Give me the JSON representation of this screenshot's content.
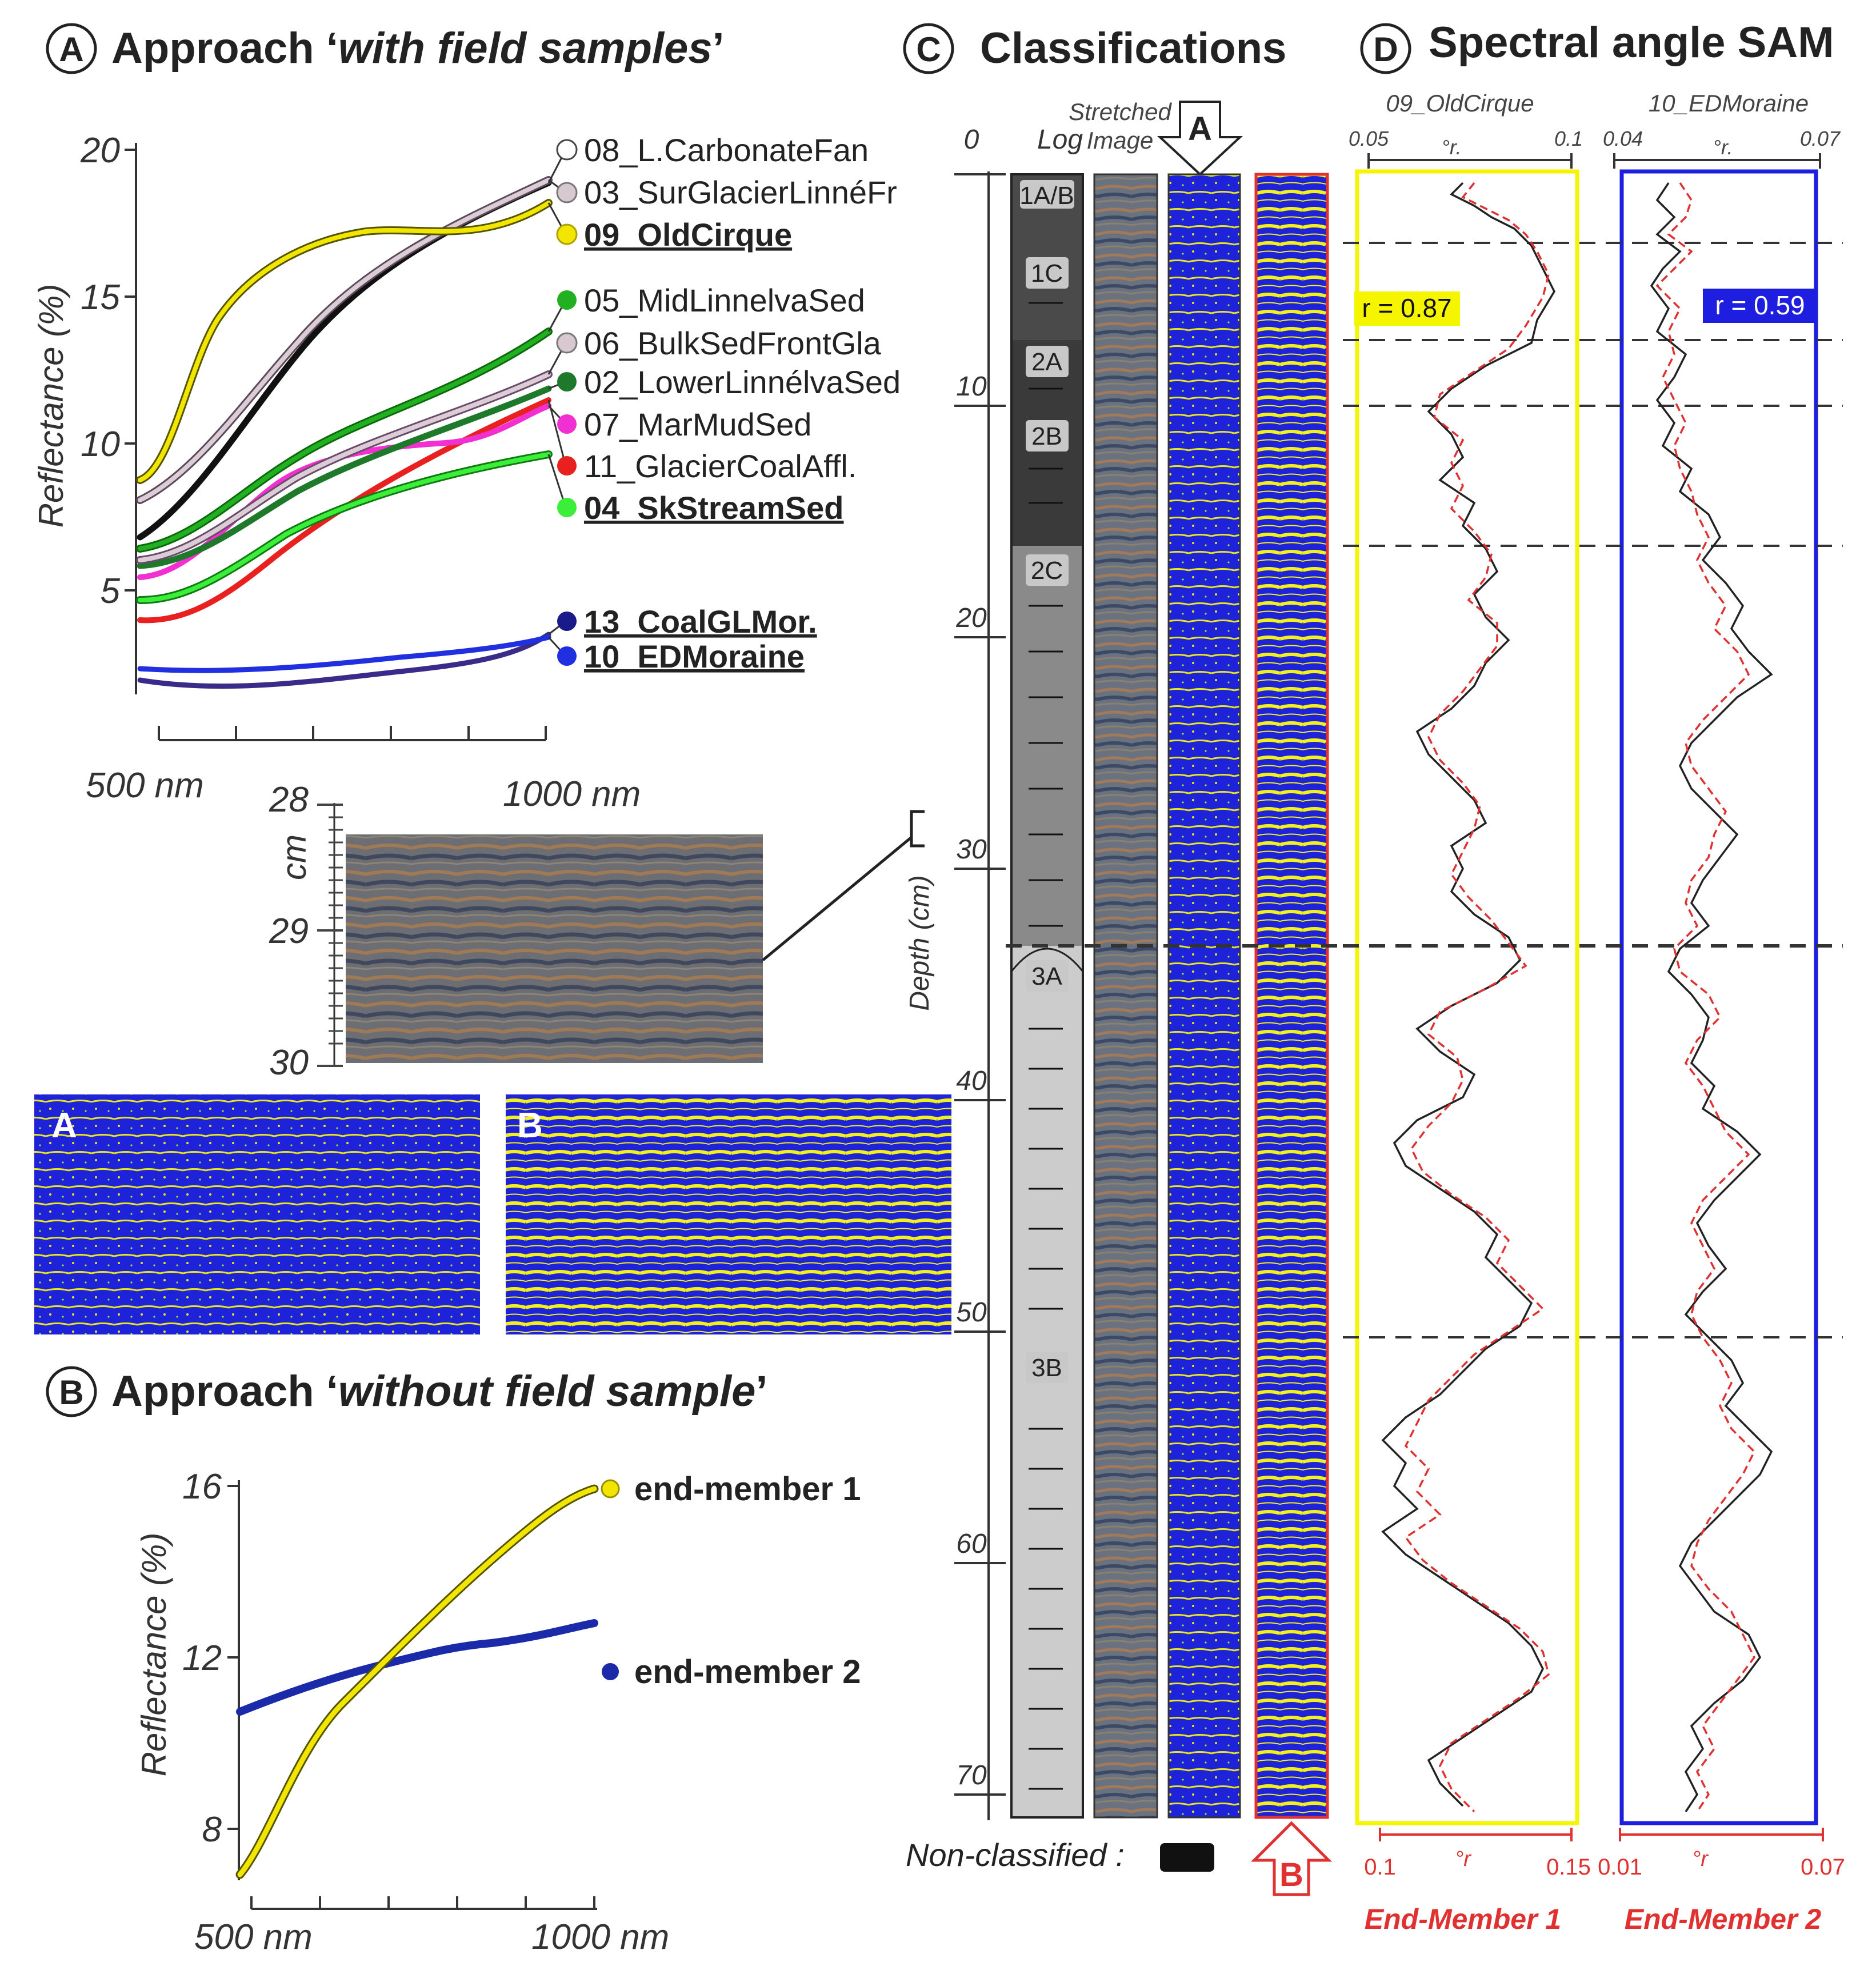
{
  "panelA": {
    "label": "A",
    "title_prefix": "Approach ‘",
    "title_em": "with field samples",
    "title_suffix": "’",
    "chart": {
      "ylabel": "Reflectance (%)",
      "y_ticks": [
        "20",
        "15",
        "10",
        "5"
      ],
      "x_labels": [
        "500 nm",
        "1000 nm"
      ]
    },
    "legend": [
      {
        "id": "08",
        "label": "08_L.CarbonateFan",
        "color": "#ffffff",
        "bold": false
      },
      {
        "id": "03",
        "label": "03_SurGlacierLinnéFr",
        "color": "#d8c8d0",
        "bold": false
      },
      {
        "id": "09",
        "label": "09_OldCirque",
        "color": "#f2e600",
        "bold": true
      },
      {
        "id": "05",
        "label": "05_MidLinnelvaSed",
        "color": "#22b022",
        "bold": false
      },
      {
        "id": "06",
        "label": "06_BulkSedFrontGla",
        "color": "#d8c8d0",
        "bold": false
      },
      {
        "id": "02",
        "label": "02_LowerLinnélvaSed",
        "color": "#1e7a2a",
        "bold": false
      },
      {
        "id": "07",
        "label": "07_MarMudSed",
        "color": "#f030d0",
        "bold": false
      },
      {
        "id": "11",
        "label": "11_GlacierCoalAffl.",
        "color": "#e82020",
        "bold": false
      },
      {
        "id": "04",
        "label": "04_SkStreamSed",
        "color": "#3aee3a",
        "bold": true
      },
      {
        "id": "13",
        "label": "13_CoalGLMor.",
        "color": "#1a1a8a",
        "bold": true
      },
      {
        "id": "10",
        "label": "10_EDMoraine",
        "color": "#2030e0",
        "bold": true
      }
    ],
    "inset": {
      "unit": "cm",
      "ticks": [
        "28",
        "29",
        "30"
      ],
      "map_a": "A",
      "map_b": "B"
    }
  },
  "panelB": {
    "label": "B",
    "title_prefix": "Approach ‘",
    "title_em": "without field sample",
    "title_suffix": "’",
    "chart": {
      "ylabel": "Reflectance (%)",
      "y_ticks": [
        "16",
        "12",
        "8"
      ],
      "x_labels": [
        "500 nm",
        "1000 nm"
      ],
      "series": [
        {
          "name": "end-member 1",
          "color": "#f2e600"
        },
        {
          "name": "end-member 2",
          "color": "#1a2aa8"
        }
      ]
    }
  },
  "panelC": {
    "label": "C",
    "title": "Classifications",
    "col_log": "Log",
    "col_img_1": "Stretched",
    "col_img_2": "Image",
    "arrow_a": "A",
    "arrow_b": "B",
    "depth_label": "Depth (cm)",
    "depth_ticks": [
      "0",
      "10",
      "20",
      "30",
      "40",
      "50",
      "60",
      "70"
    ],
    "units": [
      "1A/B",
      "1C",
      "2A",
      "2B",
      "2C",
      "3A",
      "3B"
    ],
    "nonclassified": "Non-classified :"
  },
  "panelD": {
    "label": "D",
    "title": "Spectral angle SAM",
    "track1": {
      "name": "09_OldCirque",
      "top_min": "0.05",
      "top_max": "0.1",
      "top_unit": "°r.",
      "bottom_min": "0.1",
      "bottom_max": "0.15",
      "bottom_unit": "°r",
      "r": "r = 0.87",
      "em": "End-Member 1",
      "color": "#f5f500"
    },
    "track2": {
      "name": "10_EDMoraine",
      "top_min": "0.04",
      "top_max": "0.07",
      "top_unit": "°r.",
      "bottom_min": "0.01",
      "bottom_max": "0.07",
      "bottom_unit": "°r",
      "r": "r = 0.59",
      "em": "End-Member 2",
      "color": "#1e1ee0"
    }
  }
}
